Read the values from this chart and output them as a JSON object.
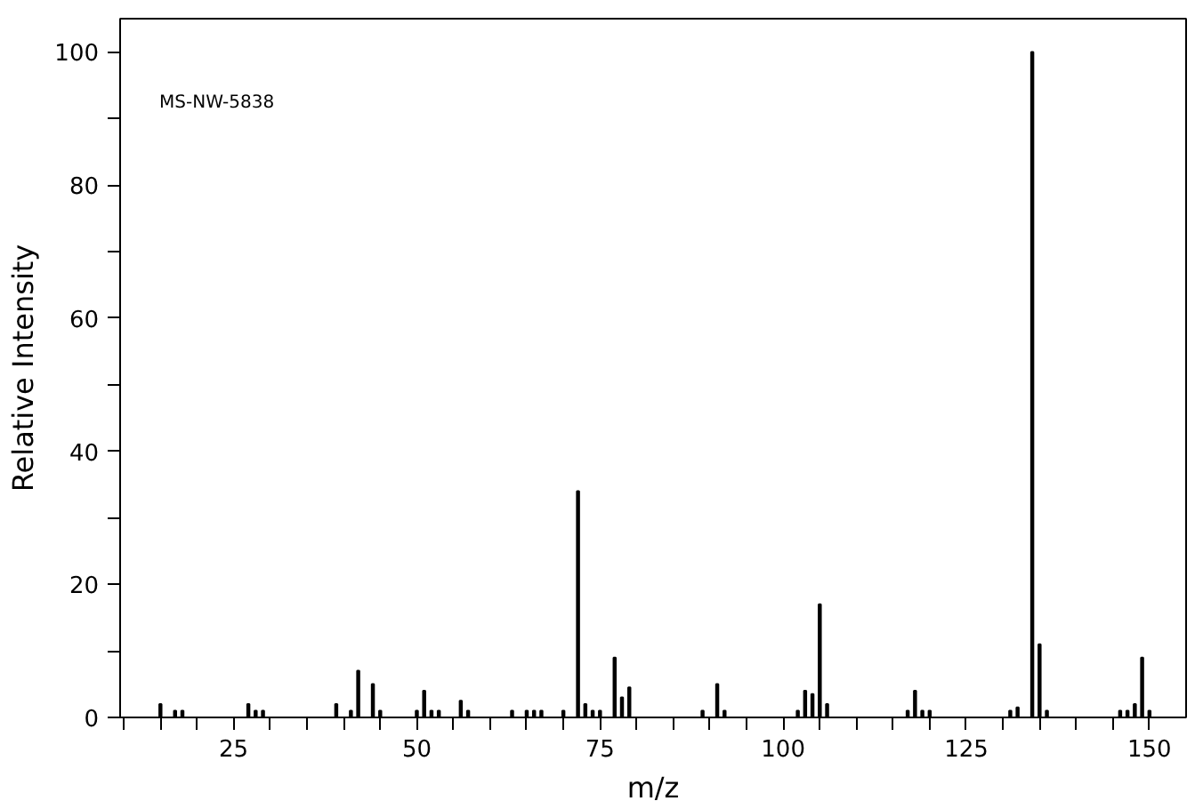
{
  "chart_data": {
    "type": "bar",
    "xlabel": "m/z",
    "ylabel": "Relative Intensity",
    "annotations": [
      "MS-NW-5838"
    ],
    "x": [
      15,
      17,
      18,
      27,
      28,
      29,
      39,
      41,
      42,
      44,
      45,
      50,
      51,
      52,
      53,
      56,
      57,
      63,
      65,
      66,
      67,
      70,
      72,
      73,
      74,
      75,
      77,
      78,
      79,
      89,
      91,
      92,
      102,
      103,
      104,
      105,
      106,
      117,
      118,
      119,
      120,
      131,
      132,
      134,
      135,
      136,
      146,
      147,
      148,
      149,
      150
    ],
    "values": [
      2,
      1,
      1,
      2,
      1,
      1,
      2,
      1,
      7,
      5,
      1,
      1,
      4,
      1,
      1,
      2.5,
      1,
      1,
      1,
      1,
      1,
      1,
      34,
      2,
      1,
      1,
      9,
      3,
      4.5,
      1,
      5,
      1,
      1,
      4,
      3.5,
      17,
      2,
      1,
      4,
      1,
      1,
      1,
      1.5,
      100,
      11,
      1,
      1,
      1,
      2,
      9,
      1
    ],
    "color": "#000000",
    "xlim": [
      9.5,
      155
    ],
    "ylim": [
      0,
      105
    ],
    "xticks": [
      {
        "value": 10,
        "label": null
      },
      {
        "value": 15,
        "label": null
      },
      {
        "value": 20,
        "label": null
      },
      25,
      {
        "value": 30,
        "label": null
      },
      {
        "value": 35,
        "label": null
      },
      {
        "value": 40,
        "label": null
      },
      {
        "value": 45,
        "label": null
      },
      50,
      {
        "value": 55,
        "label": null
      },
      {
        "value": 60,
        "label": null
      },
      {
        "value": 65,
        "label": null
      },
      {
        "value": 70,
        "label": null
      },
      75,
      {
        "value": 80,
        "label": null
      },
      {
        "value": 85,
        "label": null
      },
      {
        "value": 90,
        "label": null
      },
      {
        "value": 95,
        "label": null
      },
      100,
      {
        "value": 105,
        "label": null
      },
      {
        "value": 110,
        "label": null
      },
      {
        "value": 115,
        "label": null
      },
      {
        "value": 120,
        "label": null
      },
      125,
      {
        "value": 130,
        "label": null
      },
      {
        "value": 135,
        "label": null
      },
      {
        "value": 140,
        "label": null
      },
      {
        "value": 145,
        "label": null
      },
      150
    ],
    "yticks": [
      0,
      {
        "value": 10,
        "label": null
      },
      20,
      {
        "value": 30,
        "label": null
      },
      40,
      {
        "value": 50,
        "label": null
      },
      60,
      {
        "value": 70,
        "label": null
      },
      80,
      {
        "value": 90,
        "label": null
      },
      100
    ],
    "grid": false
  }
}
